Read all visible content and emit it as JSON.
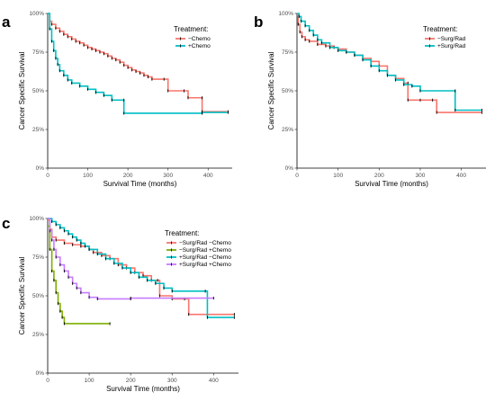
{
  "chart_data": [
    {
      "type": "line",
      "panel": "a",
      "xlabel": "Survival Time (months)",
      "ylabel": "Cancer Specific Survival",
      "xlim": [
        0,
        460
      ],
      "ylim": [
        0,
        1
      ],
      "xticks": [
        "0",
        "100",
        "200",
        "300",
        "400"
      ],
      "yticks": [
        "0%",
        "25%",
        "50%",
        "75%",
        "100%"
      ],
      "legend_title": "Treatment:",
      "legend_position": "top-right",
      "grid": false,
      "series": [
        {
          "name": "−Chemo",
          "color": "#f8766d",
          "points": [
            [
              0,
              1.0
            ],
            [
              5,
              0.95
            ],
            [
              10,
              0.93
            ],
            [
              20,
              0.905
            ],
            [
              30,
              0.885
            ],
            [
              40,
              0.865
            ],
            [
              50,
              0.85
            ],
            [
              60,
              0.835
            ],
            [
              70,
              0.82
            ],
            [
              80,
              0.81
            ],
            [
              90,
              0.795
            ],
            [
              100,
              0.78
            ],
            [
              110,
              0.77
            ],
            [
              120,
              0.76
            ],
            [
              130,
              0.75
            ],
            [
              140,
              0.74
            ],
            [
              150,
              0.725
            ],
            [
              160,
              0.71
            ],
            [
              170,
              0.7
            ],
            [
              180,
              0.685
            ],
            [
              190,
              0.665
            ],
            [
              200,
              0.65
            ],
            [
              210,
              0.635
            ],
            [
              220,
              0.625
            ],
            [
              230,
              0.615
            ],
            [
              240,
              0.6
            ],
            [
              250,
              0.59
            ],
            [
              260,
              0.575
            ],
            [
              290,
              0.575
            ],
            [
              300,
              0.5
            ],
            [
              340,
              0.5
            ],
            [
              350,
              0.455
            ],
            [
              385,
              0.455
            ],
            [
              385,
              0.365
            ],
            [
              450,
              0.365
            ]
          ]
        },
        {
          "name": "+Chemo",
          "color": "#00bfc4",
          "points": [
            [
              0,
              1.0
            ],
            [
              5,
              0.9
            ],
            [
              10,
              0.82
            ],
            [
              15,
              0.76
            ],
            [
              20,
              0.71
            ],
            [
              25,
              0.67
            ],
            [
              30,
              0.63
            ],
            [
              40,
              0.6
            ],
            [
              50,
              0.57
            ],
            [
              60,
              0.55
            ],
            [
              80,
              0.53
            ],
            [
              100,
              0.51
            ],
            [
              120,
              0.49
            ],
            [
              140,
              0.47
            ],
            [
              160,
              0.44
            ],
            [
              190,
              0.44
            ],
            [
              190,
              0.355
            ],
            [
              385,
              0.355
            ],
            [
              385,
              0.36
            ],
            [
              450,
              0.36
            ]
          ]
        }
      ]
    },
    {
      "type": "line",
      "panel": "b",
      "xlabel": "Survival Time (months)",
      "ylabel": "Cancer Specific Survival",
      "xlim": [
        0,
        460
      ],
      "ylim": [
        0,
        1
      ],
      "xticks": [
        "0",
        "100",
        "200",
        "300",
        "400"
      ],
      "yticks": [
        "0%",
        "25%",
        "50%",
        "75%",
        "100%"
      ],
      "legend_title": "Treatment:",
      "legend_position": "top-right",
      "grid": false,
      "series": [
        {
          "name": "−Surg/Rad",
          "color": "#f8766d",
          "points": [
            [
              0,
              0.99
            ],
            [
              3,
              0.93
            ],
            [
              7,
              0.88
            ],
            [
              12,
              0.85
            ],
            [
              20,
              0.83
            ],
            [
              30,
              0.82
            ],
            [
              50,
              0.8
            ],
            [
              70,
              0.79
            ],
            [
              90,
              0.78
            ],
            [
              100,
              0.77
            ],
            [
              120,
              0.75
            ],
            [
              140,
              0.73
            ],
            [
              160,
              0.71
            ],
            [
              180,
              0.69
            ],
            [
              200,
              0.66
            ],
            [
              220,
              0.6
            ],
            [
              240,
              0.58
            ],
            [
              260,
              0.55
            ],
            [
              270,
              0.55
            ],
            [
              270,
              0.44
            ],
            [
              300,
              0.44
            ],
            [
              330,
              0.44
            ],
            [
              340,
              0.36
            ],
            [
              450,
              0.36
            ]
          ]
        },
        {
          "name": "+Surg/Rad",
          "color": "#00bfc4",
          "points": [
            [
              0,
              1.0
            ],
            [
              5,
              0.98
            ],
            [
              10,
              0.95
            ],
            [
              20,
              0.92
            ],
            [
              30,
              0.89
            ],
            [
              40,
              0.86
            ],
            [
              50,
              0.83
            ],
            [
              60,
              0.81
            ],
            [
              80,
              0.78
            ],
            [
              100,
              0.76
            ],
            [
              120,
              0.75
            ],
            [
              140,
              0.73
            ],
            [
              160,
              0.7
            ],
            [
              180,
              0.66
            ],
            [
              200,
              0.63
            ],
            [
              220,
              0.6
            ],
            [
              240,
              0.57
            ],
            [
              260,
              0.54
            ],
            [
              280,
              0.53
            ],
            [
              300,
              0.5
            ],
            [
              385,
              0.5
            ],
            [
              385,
              0.375
            ],
            [
              450,
              0.375
            ]
          ]
        }
      ]
    },
    {
      "type": "line",
      "panel": "c",
      "xlabel": "Survival Time (months)",
      "ylabel": "Cancer Specific Survival",
      "xlim": [
        0,
        460
      ],
      "ylim": [
        0,
        1
      ],
      "xticks": [
        "0",
        "100",
        "200",
        "300",
        "400"
      ],
      "yticks": [
        "0%",
        "25%",
        "50%",
        "75%",
        "100%"
      ],
      "legend_title": "Treatment:",
      "legend_position": "top-right",
      "grid": false,
      "series": [
        {
          "name": "−Surg/Rad −Chemo",
          "color": "#f8766d",
          "points": [
            [
              0,
              0.99
            ],
            [
              5,
              0.93
            ],
            [
              10,
              0.88
            ],
            [
              20,
              0.86
            ],
            [
              40,
              0.84
            ],
            [
              60,
              0.83
            ],
            [
              80,
              0.82
            ],
            [
              100,
              0.8
            ],
            [
              110,
              0.78
            ],
            [
              130,
              0.76
            ],
            [
              150,
              0.74
            ],
            [
              170,
              0.7
            ],
            [
              190,
              0.68
            ],
            [
              210,
              0.65
            ],
            [
              230,
              0.63
            ],
            [
              250,
              0.6
            ],
            [
              265,
              0.6
            ],
            [
              270,
              0.5
            ],
            [
              300,
              0.48
            ],
            [
              330,
              0.48
            ],
            [
              340,
              0.38
            ],
            [
              450,
              0.38
            ]
          ]
        },
        {
          "name": "−Surg/Rad +Chemo",
          "color": "#7cae00",
          "points": [
            [
              0,
              0.95
            ],
            [
              5,
              0.8
            ],
            [
              10,
              0.66
            ],
            [
              15,
              0.6
            ],
            [
              20,
              0.52
            ],
            [
              25,
              0.45
            ],
            [
              30,
              0.4
            ],
            [
              35,
              0.36
            ],
            [
              40,
              0.32
            ],
            [
              150,
              0.32
            ]
          ]
        },
        {
          "name": "+Surg/Rad −Chemo",
          "color": "#00bfc4",
          "points": [
            [
              0,
              1.0
            ],
            [
              10,
              0.98
            ],
            [
              20,
              0.96
            ],
            [
              30,
              0.94
            ],
            [
              40,
              0.92
            ],
            [
              50,
              0.9
            ],
            [
              60,
              0.88
            ],
            [
              70,
              0.86
            ],
            [
              80,
              0.84
            ],
            [
              90,
              0.82
            ],
            [
              100,
              0.8
            ],
            [
              120,
              0.77
            ],
            [
              140,
              0.74
            ],
            [
              160,
              0.71
            ],
            [
              180,
              0.68
            ],
            [
              200,
              0.65
            ],
            [
              220,
              0.62
            ],
            [
              240,
              0.6
            ],
            [
              260,
              0.58
            ],
            [
              280,
              0.55
            ],
            [
              300,
              0.53
            ],
            [
              380,
              0.53
            ],
            [
              385,
              0.36
            ],
            [
              450,
              0.36
            ]
          ]
        },
        {
          "name": "+Surg/Rad +Chemo",
          "color": "#c77cff",
          "points": [
            [
              0,
              1.0
            ],
            [
              5,
              0.92
            ],
            [
              10,
              0.86
            ],
            [
              15,
              0.8
            ],
            [
              20,
              0.75
            ],
            [
              30,
              0.7
            ],
            [
              40,
              0.66
            ],
            [
              50,
              0.62
            ],
            [
              60,
              0.58
            ],
            [
              70,
              0.55
            ],
            [
              80,
              0.52
            ],
            [
              100,
              0.49
            ],
            [
              120,
              0.48
            ],
            [
              200,
              0.48
            ],
            [
              200,
              0.485
            ],
            [
              400,
              0.485
            ]
          ]
        }
      ]
    }
  ]
}
